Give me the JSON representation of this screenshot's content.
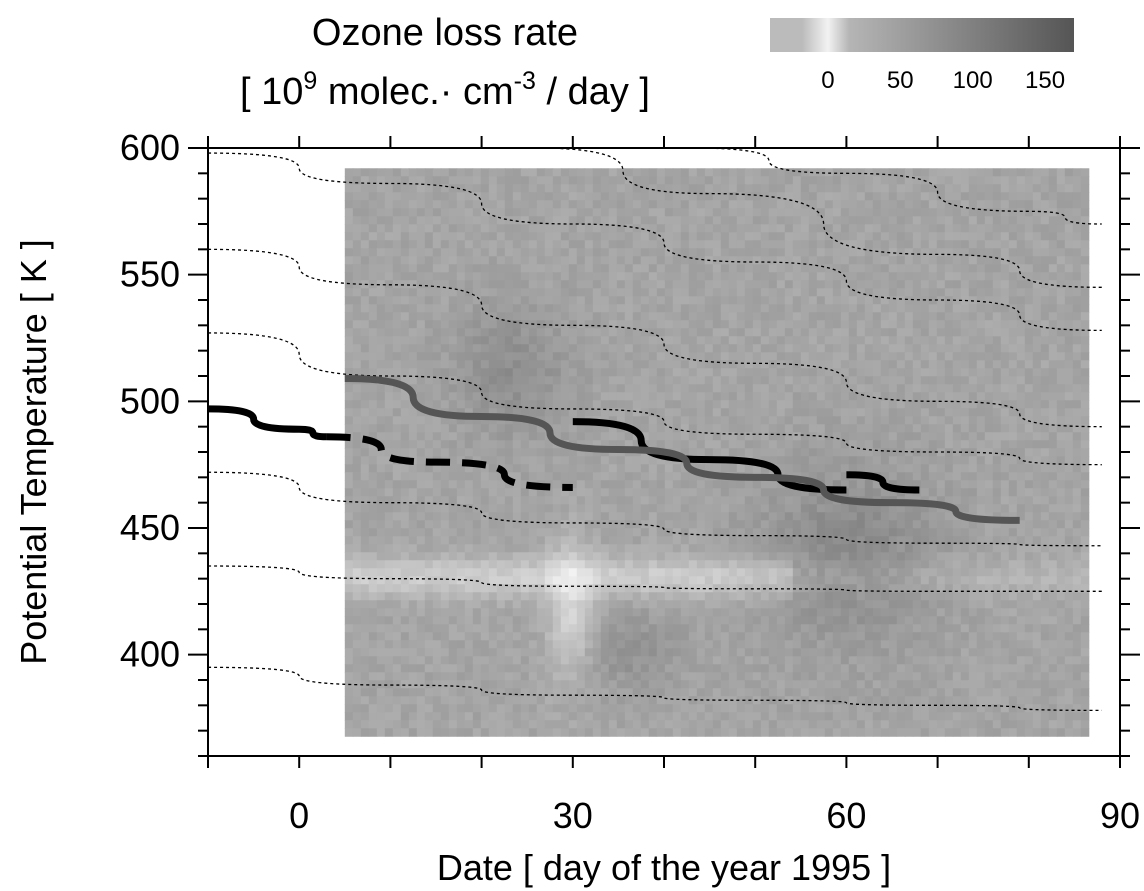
{
  "chart_data": {
    "type": "heatmap",
    "title_line1": "Ozone loss rate",
    "title_line2": {
      "open": "[ 10",
      "exp1": "9",
      "mid": " molec.· cm",
      "exp2": "-3",
      "close": " / day ]"
    },
    "xlabel": "Date [ day of the year 1995 ]",
    "ylabel": "Potential Temperature [ K ]",
    "xlim": [
      -10,
      90
    ],
    "ylim": [
      360,
      600
    ],
    "x_ticks": [
      0,
      30,
      60,
      90
    ],
    "y_ticks": [
      400,
      450,
      500,
      550,
      600
    ],
    "x_minor_step": 10,
    "y_minor_step": 10,
    "colorbar": {
      "ticks": [
        "0",
        "50",
        "100",
        "150"
      ],
      "tick_values": [
        0,
        50,
        100,
        150
      ],
      "range": [
        -40,
        170
      ],
      "color_low": "#bbbbbb",
      "color_zero": "#f2f2f2",
      "color_high": "#555555"
    },
    "shaded_region": {
      "x_range": [
        5,
        86
      ],
      "y_range": [
        370,
        592
      ]
    },
    "isentrope_curves": [
      {
        "points": [
          [
            -10,
            598
          ],
          [
            10,
            586
          ],
          [
            30,
            570
          ],
          [
            50,
            555
          ],
          [
            70,
            540
          ],
          [
            88,
            528
          ]
        ]
      },
      {
        "points": [
          [
            -10,
            560
          ],
          [
            10,
            546
          ],
          [
            30,
            530
          ],
          [
            50,
            515
          ],
          [
            70,
            500
          ],
          [
            88,
            490
          ]
        ]
      },
      {
        "points": [
          [
            -10,
            527
          ],
          [
            10,
            510
          ],
          [
            30,
            497
          ],
          [
            50,
            487
          ],
          [
            70,
            480
          ],
          [
            88,
            475
          ]
        ]
      },
      {
        "points": [
          [
            -10,
            472
          ],
          [
            10,
            460
          ],
          [
            30,
            452
          ],
          [
            50,
            447
          ],
          [
            70,
            444
          ],
          [
            88,
            443
          ]
        ]
      },
      {
        "points": [
          [
            -10,
            435
          ],
          [
            10,
            430
          ],
          [
            30,
            427
          ],
          [
            50,
            426
          ],
          [
            70,
            425
          ],
          [
            88,
            425
          ]
        ]
      },
      {
        "points": [
          [
            -10,
            395
          ],
          [
            10,
            388
          ],
          [
            30,
            384
          ],
          [
            50,
            382
          ],
          [
            70,
            380
          ],
          [
            88,
            378
          ]
        ]
      },
      {
        "points": [
          [
            26,
            600
          ],
          [
            45,
            582
          ],
          [
            70,
            558
          ],
          [
            88,
            545
          ]
        ]
      },
      {
        "points": [
          [
            43,
            600
          ],
          [
            60,
            590
          ],
          [
            80,
            575
          ],
          [
            88,
            570
          ]
        ]
      }
    ],
    "series": [
      {
        "style": "solid-black",
        "points": [
          [
            -10,
            497
          ],
          [
            0,
            489
          ],
          [
            3,
            486
          ]
        ]
      },
      {
        "style": "dashed-black",
        "points": [
          [
            3,
            486
          ],
          [
            15,
            476
          ],
          [
            30,
            466
          ]
        ]
      },
      {
        "style": "solid-black",
        "points": [
          [
            30,
            492
          ],
          [
            45,
            477
          ],
          [
            60,
            465
          ]
        ]
      },
      {
        "style": "solid-black",
        "points": [
          [
            60,
            471
          ],
          [
            68,
            465
          ]
        ]
      },
      {
        "style": "solid-gray",
        "points": [
          [
            5,
            509
          ],
          [
            20,
            494
          ],
          [
            35,
            481
          ],
          [
            50,
            470
          ],
          [
            65,
            460
          ],
          [
            79,
            453
          ]
        ]
      }
    ]
  }
}
